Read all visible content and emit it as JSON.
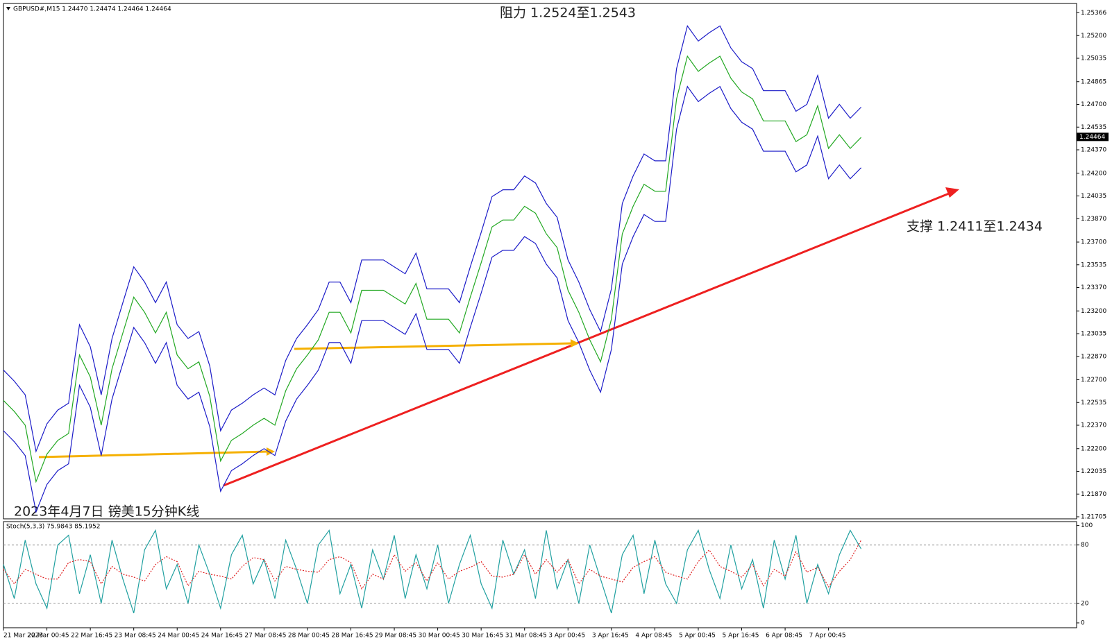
{
  "chart_data": [
    {
      "type": "line",
      "title": "GBPUSD#,M15  1.24470 1.24474 1.24464 1.24464",
      "annotations": [
        "阻力 1.2524至1.2543",
        "支撑 1.2411至1.2434",
        "2023年4月7日 镑美15分钟K线"
      ],
      "current_price": {
        "value": 1.24464,
        "label": "1.24464"
      },
      "categories": [
        "21 Mar 2023",
        null,
        null,
        null,
        "22 Mar 00:45",
        null,
        null,
        null,
        "22 Mar 16:45",
        null,
        null,
        null,
        "23 Mar 08:45",
        null,
        null,
        null,
        "24 Mar 00:45",
        null,
        null,
        null,
        "24 Mar 16:45",
        null,
        null,
        null,
        "27 Mar 08:45",
        null,
        null,
        null,
        "28 Mar 00:45",
        null,
        null,
        null,
        "28 Mar 16:45",
        null,
        null,
        null,
        "29 Mar 08:45",
        null,
        null,
        null,
        "30 Mar 00:45",
        null,
        null,
        null,
        "30 Mar 16:45",
        null,
        null,
        null,
        "31 Mar 08:45",
        null,
        null,
        null,
        "3 Apr 00:45",
        null,
        null,
        null,
        "3 Apr 16:45",
        null,
        null,
        null,
        "4 Apr 08:45",
        null,
        null,
        null,
        "5 Apr 00:45",
        null,
        null,
        null,
        "5 Apr 16:45",
        null,
        null,
        null,
        "6 Apr 08:45",
        null,
        null,
        null,
        "7 Apr 00:45",
        null,
        null,
        null
      ],
      "series": [
        {
          "color": "#22a822",
          "values": [
            1.2255,
            1.2247,
            1.2237,
            1.2196,
            1.2216,
            1.2226,
            1.2231,
            1.2288,
            1.2272,
            1.2237,
            1.2278,
            1.2304,
            1.233,
            1.2319,
            1.2304,
            1.2319,
            1.2288,
            1.2278,
            1.2283,
            1.2258,
            1.2211,
            1.2226,
            1.2231,
            1.2237,
            1.2242,
            1.2237,
            1.2262,
            1.2278,
            1.2288,
            1.2299,
            1.2319,
            1.2319,
            1.2304,
            1.2335,
            1.2335,
            1.2335,
            1.233,
            1.2325,
            1.234,
            1.2314,
            1.2314,
            1.2314,
            1.2304,
            1.233,
            1.2355,
            1.2381,
            1.2386,
            1.2386,
            1.2396,
            1.2391,
            1.2376,
            1.2366,
            1.2335,
            1.2319,
            1.2299,
            1.2283,
            1.2314,
            1.2376,
            1.2396,
            1.2412,
            1.2407,
            1.2407,
            1.2474,
            1.2505,
            1.2494,
            1.25,
            1.2505,
            1.2489,
            1.2479,
            1.2474,
            1.2458,
            1.2458,
            1.2458,
            1.2443,
            1.2448,
            1.2469,
            1.2438,
            1.2448,
            1.2438,
            1.2446
          ]
        },
        {
          "color": "#1c1cc8",
          "values": [
            1.2277,
            1.2269,
            1.2259,
            1.2218,
            1.2238,
            1.2248,
            1.2253,
            1.231,
            1.2294,
            1.2259,
            1.23,
            1.2326,
            1.2352,
            1.2341,
            1.2326,
            1.2341,
            1.231,
            1.23,
            1.2305,
            1.228,
            1.2233,
            1.2248,
            1.2253,
            1.2259,
            1.2264,
            1.2259,
            1.2284,
            1.23,
            1.231,
            1.2321,
            1.2341,
            1.2341,
            1.2326,
            1.2357,
            1.2357,
            1.2357,
            1.2352,
            1.2347,
            1.2362,
            1.2336,
            1.2336,
            1.2336,
            1.2326,
            1.2352,
            1.2377,
            1.2403,
            1.2408,
            1.2408,
            1.2418,
            1.2413,
            1.2398,
            1.2388,
            1.2357,
            1.2341,
            1.2321,
            1.2305,
            1.2336,
            1.2398,
            1.2418,
            1.2434,
            1.2429,
            1.2429,
            1.2496,
            1.2527,
            1.2516,
            1.2522,
            1.2527,
            1.2511,
            1.2501,
            1.2496,
            1.248,
            1.248,
            1.248,
            1.2465,
            1.247,
            1.2491,
            1.246,
            1.247,
            1.246,
            1.2468
          ]
        },
        {
          "color": "#1c1cc8",
          "values": [
            1.2233,
            1.2225,
            1.2215,
            1.2174,
            1.2194,
            1.2204,
            1.2209,
            1.2266,
            1.225,
            1.2215,
            1.2256,
            1.2282,
            1.2308,
            1.2297,
            1.2282,
            1.2297,
            1.2266,
            1.2256,
            1.2261,
            1.2236,
            1.2189,
            1.2204,
            1.2209,
            1.2215,
            1.222,
            1.2215,
            1.224,
            1.2256,
            1.2266,
            1.2277,
            1.2297,
            1.2297,
            1.2282,
            1.2313,
            1.2313,
            1.2313,
            1.2308,
            1.2303,
            1.2318,
            1.2292,
            1.2292,
            1.2292,
            1.2282,
            1.2308,
            1.2333,
            1.2359,
            1.2364,
            1.2364,
            1.2374,
            1.2369,
            1.2354,
            1.2344,
            1.2313,
            1.2297,
            1.2277,
            1.2261,
            1.2292,
            1.2354,
            1.2374,
            1.239,
            1.2385,
            1.2385,
            1.2452,
            1.2483,
            1.2472,
            1.2478,
            1.2483,
            1.2467,
            1.2457,
            1.2452,
            1.2436,
            1.2436,
            1.2436,
            1.2421,
            1.2426,
            1.2447,
            1.2416,
            1.2426,
            1.2416,
            1.2424
          ]
        }
      ],
      "ylim": [
        1.2169,
        1.25433
      ],
      "yticks": [
        1.25366,
        {
          "value": 1.252,
          "label": "1.25200"
        },
        1.25035,
        1.24865,
        {
          "value": 1.247,
          "label": "1.24700"
        },
        1.24535,
        {
          "value": 1.2437,
          "label": "1.24370"
        },
        {
          "value": 1.242,
          "label": "1.24200"
        },
        1.24035,
        {
          "value": 1.2387,
          "label": "1.23870"
        },
        {
          "value": 1.237,
          "label": "1.23700"
        },
        1.23535,
        {
          "value": 1.2337,
          "label": "1.23370"
        },
        {
          "value": 1.232,
          "label": "1.23200"
        },
        1.23035,
        {
          "value": 1.2287,
          "label": "1.22870"
        },
        {
          "value": 1.227,
          "label": "1.22700"
        },
        1.22535,
        {
          "value": 1.2237,
          "label": "1.22370"
        },
        {
          "value": 1.222,
          "label": "1.22200"
        },
        1.22035,
        {
          "value": 1.2187,
          "label": "1.21870"
        },
        1.21705
      ]
    },
    {
      "type": "line",
      "title": "Stoch(5,3,3) 75.9843 85.1952",
      "series": [
        {
          "color": "#20a0a0",
          "values": [
            60,
            25,
            85,
            40,
            15,
            80,
            90,
            30,
            70,
            20,
            85,
            45,
            10,
            75,
            95,
            35,
            60,
            20,
            80,
            50,
            15,
            70,
            90,
            40,
            65,
            25,
            85,
            55,
            20,
            80,
            95,
            30,
            60,
            15,
            75,
            45,
            90,
            25,
            70,
            35,
            80,
            20,
            60,
            90,
            40,
            15,
            85,
            50,
            75,
            25,
            95,
            35,
            65,
            20,
            80,
            45,
            10,
            70,
            90,
            30,
            85,
            40,
            20,
            75,
            95,
            55,
            25,
            80,
            35,
            65,
            15,
            85,
            45,
            90,
            20,
            60,
            30,
            70,
            95,
            76
          ]
        },
        {
          "color": "#e02020",
          "dashed": true,
          "values": [
            55,
            40,
            55,
            50,
            45,
            45,
            62,
            65,
            63,
            40,
            58,
            50,
            47,
            43,
            60,
            68,
            63,
            38,
            53,
            50,
            48,
            45,
            58,
            67,
            65,
            43,
            58,
            55,
            53,
            52,
            65,
            68,
            62,
            35,
            50,
            45,
            70,
            53,
            62,
            43,
            62,
            45,
            53,
            57,
            63,
            48,
            47,
            50,
            70,
            50,
            65,
            52,
            65,
            40,
            55,
            48,
            45,
            42,
            57,
            63,
            68,
            52,
            48,
            45,
            63,
            75,
            58,
            53,
            47,
            60,
            38,
            55,
            48,
            73,
            52,
            57,
            37,
            53,
            65,
            85
          ]
        }
      ],
      "ylim": [
        -5,
        104
      ],
      "yticks": [
        0,
        20,
        80,
        100
      ],
      "levels": [
        20,
        80
      ]
    }
  ]
}
